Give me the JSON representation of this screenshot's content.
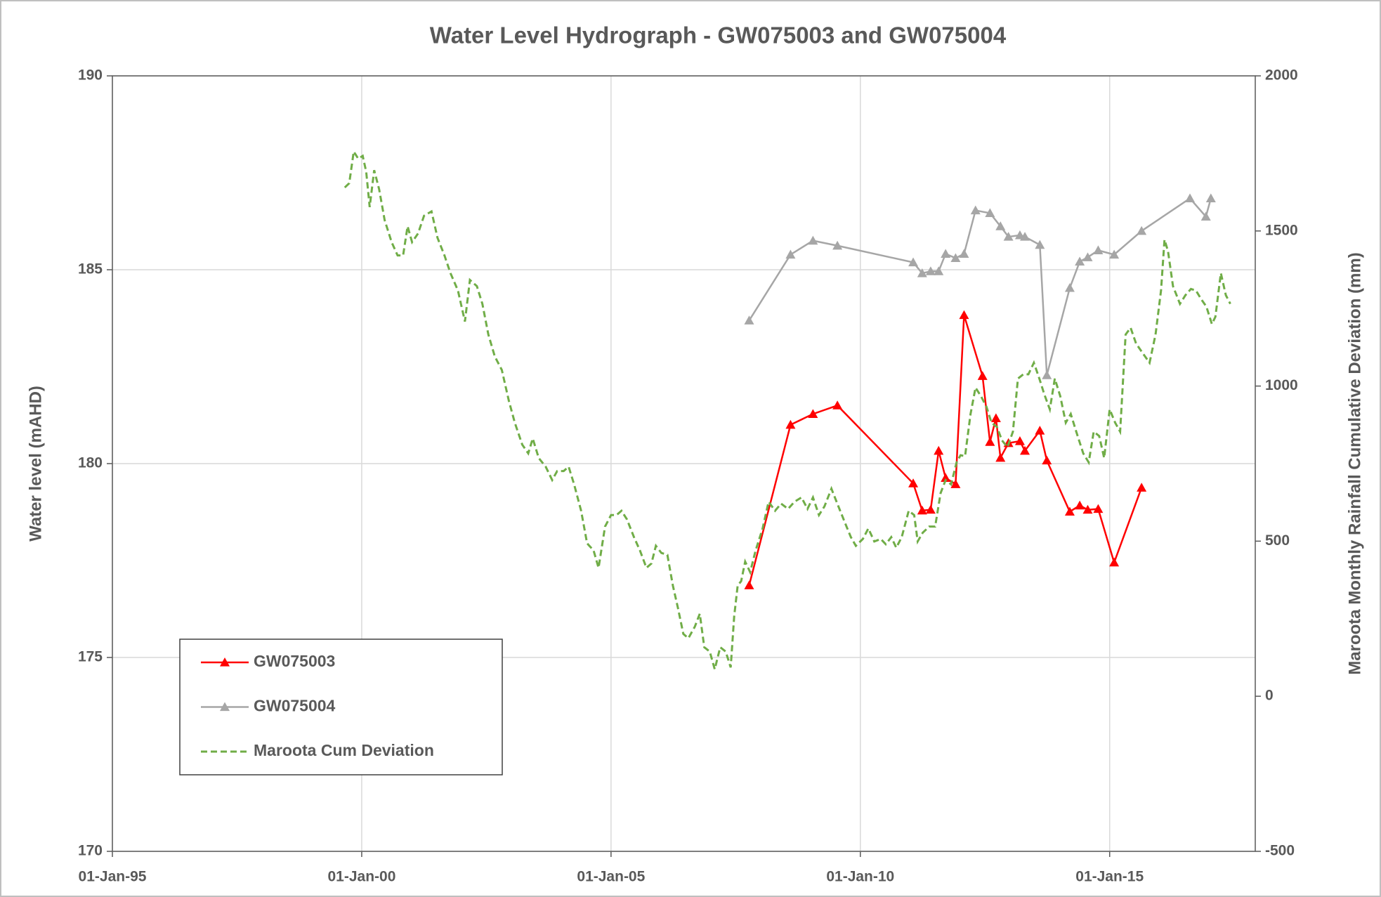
{
  "chart_data": {
    "type": "line",
    "title": "Water Level Hydrograph - GW075003 and GW075004",
    "y_label": "Water level (mAHD)",
    "y2_label": "Maroota Monthly Rainfall Cumulative Deviation (mm)",
    "xlim": [
      1995,
      2017.92
    ],
    "xticks": [
      {
        "value": 1995,
        "label": "01-Jan-95"
      },
      {
        "value": 2000,
        "label": "01-Jan-00"
      },
      {
        "value": 2005,
        "label": "01-Jan-05"
      },
      {
        "value": 2010,
        "label": "01-Jan-10"
      },
      {
        "value": 2015,
        "label": "01-Jan-15"
      }
    ],
    "ylim": [
      170,
      190
    ],
    "yticks": [
      170,
      175,
      180,
      185,
      190
    ],
    "y2lim": [
      -500,
      2000
    ],
    "y2ticks": [
      -500,
      0,
      500,
      1000,
      1500,
      2000
    ],
    "grid": true,
    "legend": "lower left",
    "series": [
      {
        "name": "GW075003",
        "color": "#ff0000",
        "marker": "triangle",
        "dashed": false,
        "x": [
          2007.77,
          2008.6,
          2009.05,
          2009.54,
          2011.06,
          2011.24,
          2011.41,
          2011.57,
          2011.71,
          2011.91,
          2012.08,
          2012.45,
          2012.6,
          2012.72,
          2012.81,
          2012.97,
          2013.2,
          2013.3,
          2013.6,
          2013.74,
          2014.2,
          2014.4,
          2014.56,
          2014.77,
          2015.09,
          2015.64
        ],
        "values": [
          176.86,
          181.0,
          181.28,
          181.5,
          179.49,
          178.79,
          178.81,
          180.33,
          179.63,
          179.47,
          183.83,
          182.26,
          180.56,
          181.17,
          180.15,
          180.53,
          180.58,
          180.33,
          180.85,
          180.08,
          178.76,
          178.92,
          178.81,
          178.83,
          177.45,
          179.38
        ]
      },
      {
        "name": "GW075004",
        "color": "#a6a6a6",
        "marker": "triangle",
        "dashed": false,
        "x": [
          2007.77,
          2008.6,
          2009.05,
          2009.54,
          2011.06,
          2011.24,
          2011.41,
          2011.57,
          2011.71,
          2011.91,
          2012.08,
          2012.31,
          2012.6,
          2012.81,
          2012.97,
          2013.2,
          2013.3,
          2013.6,
          2013.74,
          2014.2,
          2014.4,
          2014.56,
          2014.77,
          2015.09,
          2015.64,
          2016.61,
          2016.93,
          2017.03
        ],
        "values": [
          183.69,
          185.39,
          185.75,
          185.62,
          185.19,
          184.91,
          184.96,
          184.96,
          185.41,
          185.3,
          185.41,
          186.53,
          186.46,
          186.12,
          185.85,
          185.89,
          185.85,
          185.64,
          182.28,
          184.53,
          185.21,
          185.32,
          185.5,
          185.39,
          186.0,
          186.84,
          186.37,
          186.84
        ]
      },
      {
        "name": "Maroota Cum Deviation",
        "color": "#70ad47",
        "marker": null,
        "dashed": true,
        "axis": "y2",
        "x": [
          1999.66,
          1999.75,
          1999.84,
          1999.93,
          2000.02,
          2000.09,
          2000.16,
          2000.25,
          2000.35,
          2000.46,
          2000.6,
          2000.72,
          2000.83,
          2000.92,
          2001.01,
          2001.13,
          2001.25,
          2001.4,
          2001.52,
          2001.66,
          2001.78,
          2001.93,
          2002.07,
          2002.17,
          2002.31,
          2002.42,
          2002.54,
          2002.67,
          2002.81,
          2002.95,
          2003.07,
          2003.22,
          2003.34,
          2003.43,
          2003.55,
          2003.69,
          2003.82,
          2003.92,
          2004.05,
          2004.15,
          2004.26,
          2004.4,
          2004.52,
          2004.65,
          2004.75,
          2004.88,
          2005.0,
          2005.11,
          2005.21,
          2005.32,
          2005.46,
          2005.58,
          2005.71,
          2005.81,
          2005.9,
          2006.01,
          2006.13,
          2006.24,
          2006.34,
          2006.45,
          2006.55,
          2006.68,
          2006.78,
          2006.87,
          2006.98,
          2007.08,
          2007.19,
          2007.3,
          2007.4,
          2007.47,
          2007.54,
          2007.61,
          2007.69,
          2007.79,
          2007.9,
          2008.04,
          2008.16,
          2008.29,
          2008.41,
          2008.55,
          2008.68,
          2008.82,
          2008.94,
          2009.05,
          2009.17,
          2009.28,
          2009.42,
          2009.56,
          2009.7,
          2009.81,
          2009.91,
          2010.05,
          2010.16,
          2010.28,
          2010.41,
          2010.51,
          2010.62,
          2010.72,
          2010.83,
          2010.97,
          2011.08,
          2011.15,
          2011.25,
          2011.38,
          2011.5,
          2011.61,
          2011.71,
          2011.82,
          2011.93,
          2012.01,
          2012.1,
          2012.21,
          2012.31,
          2012.42,
          2012.53,
          2012.63,
          2012.74,
          2012.84,
          2012.95,
          2013.06,
          2013.16,
          2013.27,
          2013.37,
          2013.48,
          2013.59,
          2013.69,
          2013.8,
          2013.9,
          2014.01,
          2014.12,
          2014.22,
          2014.33,
          2014.47,
          2014.58,
          2014.68,
          2014.79,
          2014.89,
          2015.0,
          2015.11,
          2015.21,
          2015.32,
          2015.42,
          2015.53,
          2015.65,
          2015.8,
          2015.92,
          2016.03,
          2016.1,
          2016.17,
          2016.27,
          2016.41,
          2016.52,
          2016.63,
          2016.73,
          2016.84,
          2016.94,
          2017.05,
          2017.12,
          2017.23,
          2017.33,
          2017.42
        ],
        "values": [
          1640,
          1654,
          1756,
          1733,
          1742,
          1691,
          1577,
          1696,
          1634,
          1535,
          1464,
          1421,
          1421,
          1515,
          1464,
          1492,
          1549,
          1563,
          1478,
          1421,
          1364,
          1308,
          1208,
          1342,
          1322,
          1265,
          1166,
          1095,
          1052,
          953,
          882,
          811,
          783,
          831,
          768,
          740,
          697,
          726,
          726,
          740,
          683,
          598,
          493,
          470,
          414,
          547,
          584,
          584,
          598,
          570,
          513,
          470,
          414,
          428,
          485,
          462,
          456,
          357,
          286,
          201,
          187,
          224,
          266,
          158,
          144,
          87,
          158,
          144,
          93,
          258,
          357,
          371,
          434,
          400,
          470,
          541,
          627,
          598,
          621,
          604,
          627,
          641,
          604,
          641,
          584,
          612,
          669,
          612,
          556,
          513,
          485,
          507,
          541,
          499,
          507,
          490,
          513,
          479,
          513,
          598,
          584,
          499,
          527,
          547,
          547,
          655,
          697,
          683,
          754,
          777,
          774,
          910,
          995,
          967,
          933,
          882,
          868,
          825,
          803,
          853,
          1024,
          1038,
          1038,
          1075,
          1024,
          973,
          925,
          1024,
          967,
          882,
          910,
          853,
          783,
          754,
          853,
          839,
          768,
          925,
          882,
          853,
          1166,
          1188,
          1137,
          1109,
          1075,
          1166,
          1308,
          1472,
          1435,
          1322,
          1265,
          1293,
          1313,
          1308,
          1279,
          1256,
          1200,
          1223,
          1364,
          1293,
          1265
        ]
      }
    ]
  }
}
